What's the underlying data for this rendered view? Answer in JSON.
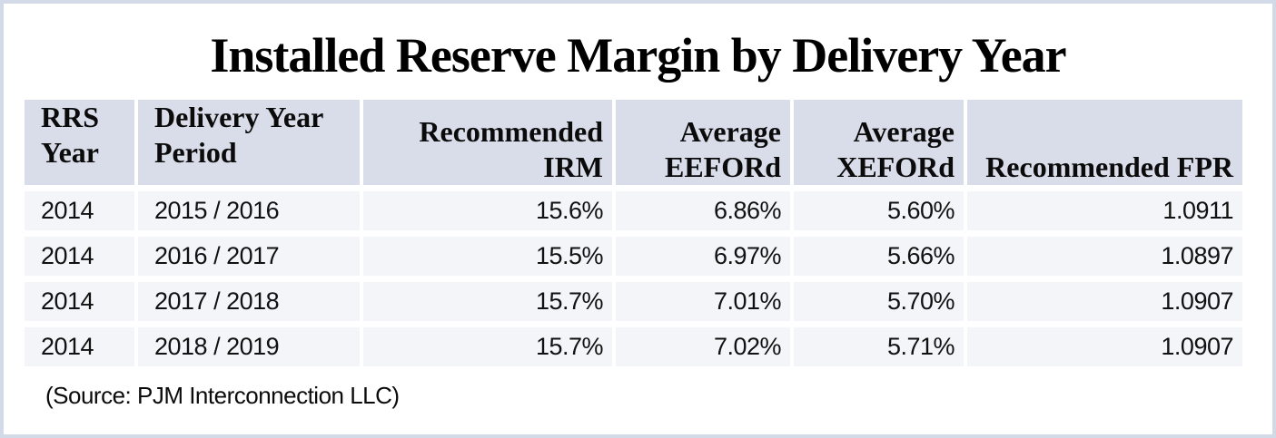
{
  "chart_data": {
    "type": "table",
    "title": "Installed Reserve Margin by Delivery Year",
    "columns": [
      {
        "label": "RRS Year",
        "align": "left"
      },
      {
        "label": "Delivery Year Period",
        "align": "left"
      },
      {
        "label": "Recommended IRM",
        "align": "right"
      },
      {
        "label": "Average EEFORd",
        "align": "right"
      },
      {
        "label": "Average XEFORd",
        "align": "right"
      },
      {
        "label": "Recommended FPR",
        "align": "right"
      }
    ],
    "rows": [
      [
        "2014",
        "2015 / 2016",
        "15.6%",
        "6.86%",
        "5.60%",
        "1.0911"
      ],
      [
        "2014",
        "2016 / 2017",
        "15.5%",
        "6.97%",
        "5.66%",
        "1.0897"
      ],
      [
        "2014",
        "2017 / 2018",
        "15.7%",
        "7.01%",
        "5.70%",
        "1.0907"
      ],
      [
        "2014",
        "2018 / 2019",
        "15.7%",
        "7.02%",
        "5.71%",
        "1.0907"
      ]
    ],
    "source_note": "(Source: PJM Interconnection LLC)",
    "layout": {
      "legend": "none",
      "grid": "off",
      "header_two_line_wrap": true
    }
  },
  "colors": {
    "frame_border": "#d3dae7",
    "header_bg": "#d9dde9",
    "row_bg": "#f4f5f8",
    "text": "#000000",
    "background": "#ffffff"
  }
}
